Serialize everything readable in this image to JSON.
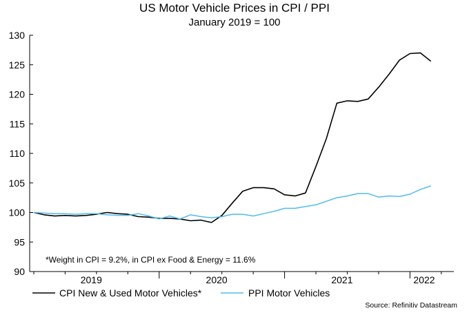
{
  "chart_data": {
    "type": "line",
    "title": "US Motor Vehicle Prices in CPI / PPI",
    "subtitle": "January 2019 = 100",
    "xlabel": "",
    "ylabel": "",
    "x_ticks": [
      "2019",
      "2020",
      "2021",
      "2022"
    ],
    "y_ticks": [
      90,
      95,
      100,
      105,
      110,
      115,
      120,
      125,
      130
    ],
    "ylim": [
      90,
      130
    ],
    "xlim": [
      "2019-01",
      "2022-04"
    ],
    "grid": false,
    "legend_position": "bottom",
    "annotation": "*Weight in CPI = 9.2%, in CPI ex Food & Energy  = 11.6%",
    "source": "Source: Refinitiv Datastream",
    "x": [
      "2019-01",
      "2019-02",
      "2019-03",
      "2019-04",
      "2019-05",
      "2019-06",
      "2019-07",
      "2019-08",
      "2019-09",
      "2019-10",
      "2019-11",
      "2019-12",
      "2020-01",
      "2020-02",
      "2020-03",
      "2020-04",
      "2020-05",
      "2020-06",
      "2020-07",
      "2020-08",
      "2020-09",
      "2020-10",
      "2020-11",
      "2020-12",
      "2021-01",
      "2021-02",
      "2021-03",
      "2021-04",
      "2021-05",
      "2021-06",
      "2021-07",
      "2021-08",
      "2021-09",
      "2021-10",
      "2021-11",
      "2021-12",
      "2022-01",
      "2022-02",
      "2022-03"
    ],
    "series": [
      {
        "name": "CPI New & Used Motor Vehicles*",
        "color": "#000000",
        "values": [
          100.0,
          99.6,
          99.4,
          99.5,
          99.4,
          99.5,
          99.7,
          100.0,
          99.8,
          99.7,
          99.3,
          99.2,
          99.0,
          99.0,
          98.9,
          98.6,
          98.7,
          98.3,
          99.5,
          101.6,
          103.6,
          104.2,
          104.2,
          104.0,
          103.0,
          102.8,
          103.3,
          107.8,
          112.5,
          118.5,
          118.9,
          118.8,
          119.2,
          121.2,
          123.4,
          125.8,
          126.9,
          127.0,
          125.6
        ]
      },
      {
        "name": "PPI Motor Vehicles",
        "color": "#4dbbf0",
        "values": [
          100.0,
          99.9,
          99.8,
          99.8,
          99.7,
          99.8,
          99.8,
          99.6,
          99.5,
          99.5,
          99.8,
          99.4,
          98.9,
          99.4,
          98.9,
          99.6,
          99.3,
          99.1,
          99.3,
          99.7,
          99.7,
          99.4,
          99.8,
          100.2,
          100.7,
          100.7,
          101.0,
          101.3,
          101.9,
          102.5,
          102.8,
          103.2,
          103.2,
          102.6,
          102.8,
          102.7,
          103.1,
          103.9,
          104.5
        ]
      }
    ]
  }
}
